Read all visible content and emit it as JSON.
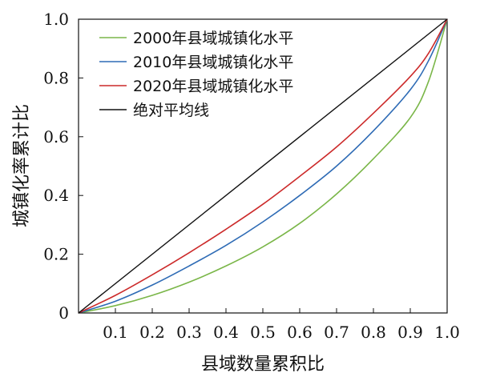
{
  "chart_data": {
    "type": "line",
    "title": "",
    "xlabel": "县域数量累积比",
    "ylabel": "城镇化率累计比",
    "xlim": [
      0,
      1.0
    ],
    "ylim": [
      0,
      1.0
    ],
    "x_ticks": [
      "0.1",
      "0.2",
      "0.3",
      "0.4",
      "0.5",
      "0.6",
      "0.7",
      "0.8",
      "0.9",
      "1.0"
    ],
    "y_ticks": [
      "0",
      "0.2",
      "0.4",
      "0.6",
      "0.8",
      "1.0"
    ],
    "grid": false,
    "legend_position": "top-left",
    "x": [
      0,
      0.1,
      0.2,
      0.3,
      0.4,
      0.5,
      0.6,
      0.7,
      0.8,
      0.9,
      0.95,
      1.0
    ],
    "series": [
      {
        "name": "2000年县域城镇化水平",
        "color": "#7ab648",
        "values": [
          0,
          0.025,
          0.06,
          0.105,
          0.16,
          0.225,
          0.305,
          0.405,
          0.525,
          0.665,
          0.79,
          1.0
        ]
      },
      {
        "name": "2010年县域城镇化水平",
        "color": "#2e6bb5",
        "values": [
          0,
          0.04,
          0.095,
          0.16,
          0.23,
          0.31,
          0.4,
          0.5,
          0.62,
          0.76,
          0.86,
          1.0
        ]
      },
      {
        "name": "2020年县域城镇化水平",
        "color": "#cc2a2a",
        "values": [
          0,
          0.06,
          0.13,
          0.205,
          0.285,
          0.37,
          0.465,
          0.565,
          0.68,
          0.805,
          0.885,
          1.0
        ]
      },
      {
        "name": "绝对平均线",
        "color": "#111111",
        "values": [
          0,
          0.1,
          0.2,
          0.3,
          0.4,
          0.5,
          0.6,
          0.7,
          0.8,
          0.9,
          0.95,
          1.0
        ]
      }
    ]
  }
}
